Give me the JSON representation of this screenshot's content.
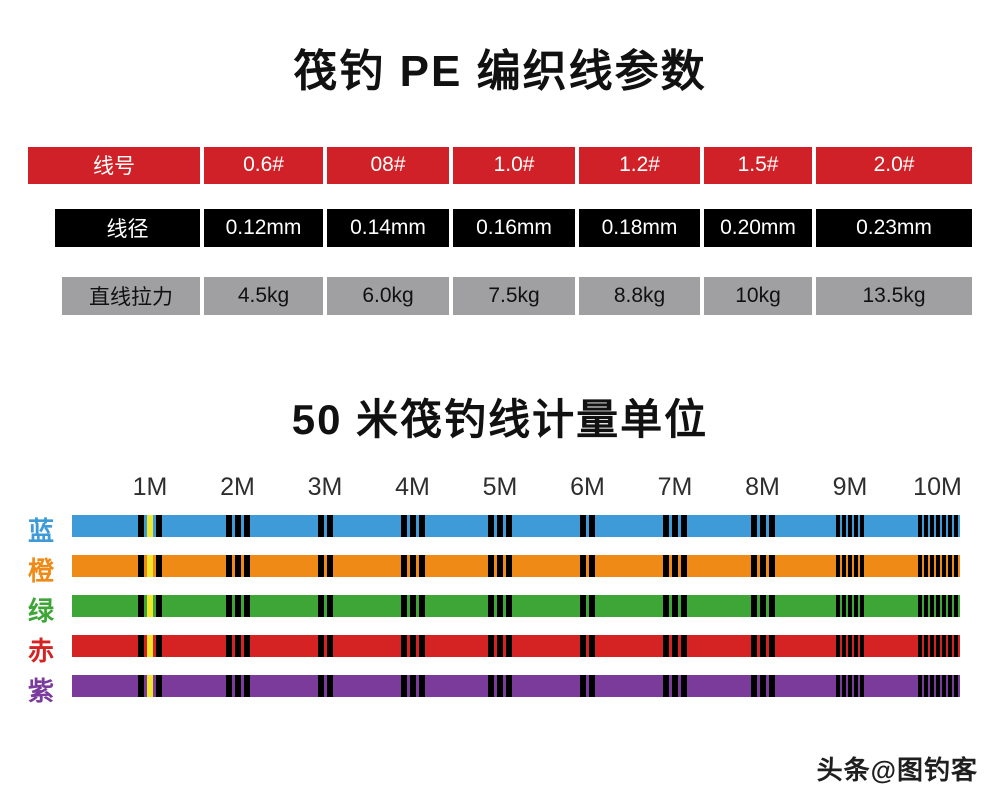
{
  "titles": {
    "params": "筏钓 PE 编织线参数",
    "measure": "50 米筏钓线计量单位"
  },
  "table": {
    "rows": [
      {
        "label": "线号",
        "values": [
          "0.6#",
          "08#",
          "1.0#",
          "1.2#",
          "1.5#",
          "2.0#"
        ],
        "bg": "#cf2127",
        "fg": "#ffffff"
      },
      {
        "label": "线径",
        "values": [
          "0.12mm",
          "0.14mm",
          "0.16mm",
          "0.18mm",
          "0.20mm",
          "0.23mm"
        ],
        "bg": "#000000",
        "fg": "#ffffff"
      },
      {
        "label": "直线拉力",
        "values": [
          "4.5kg",
          "6.0kg",
          "7.5kg",
          "8.8kg",
          "10kg",
          "13.5kg"
        ],
        "bg": "#a0a0a2",
        "fg": "#111111"
      }
    ]
  },
  "chart": {
    "meter_labels": [
      "1M",
      "2M",
      "3M",
      "4M",
      "5M",
      "6M",
      "7M",
      "8M",
      "9M",
      "10M"
    ],
    "lines": [
      {
        "name": "蓝",
        "color": "#3f9ad8"
      },
      {
        "name": "橙",
        "color": "#ef8a17"
      },
      {
        "name": "绿",
        "color": "#3ea637"
      },
      {
        "name": "赤",
        "color": "#d42322"
      },
      {
        "name": "紫",
        "color": "#7b3b9b"
      }
    ],
    "mark_colors": {
      "k": "#000000",
      "y": "#f0e62c"
    },
    "marks": [
      {
        "meter": 1,
        "pattern": "kyk"
      },
      {
        "meter": 2,
        "pattern": "kkk"
      },
      {
        "meter": 3,
        "pattern": "kk"
      },
      {
        "meter": 4,
        "pattern": "kkk"
      },
      {
        "meter": 5,
        "pattern": "kkk"
      },
      {
        "meter": 6,
        "pattern": "kk"
      },
      {
        "meter": 7,
        "pattern": "kkk"
      },
      {
        "meter": 8,
        "pattern": "kkk"
      },
      {
        "meter": 9,
        "pattern": "kkkkk"
      },
      {
        "meter": 10,
        "pattern": "kkkkkkk"
      }
    ]
  },
  "footer": {
    "credit": "头条@图钓客"
  }
}
